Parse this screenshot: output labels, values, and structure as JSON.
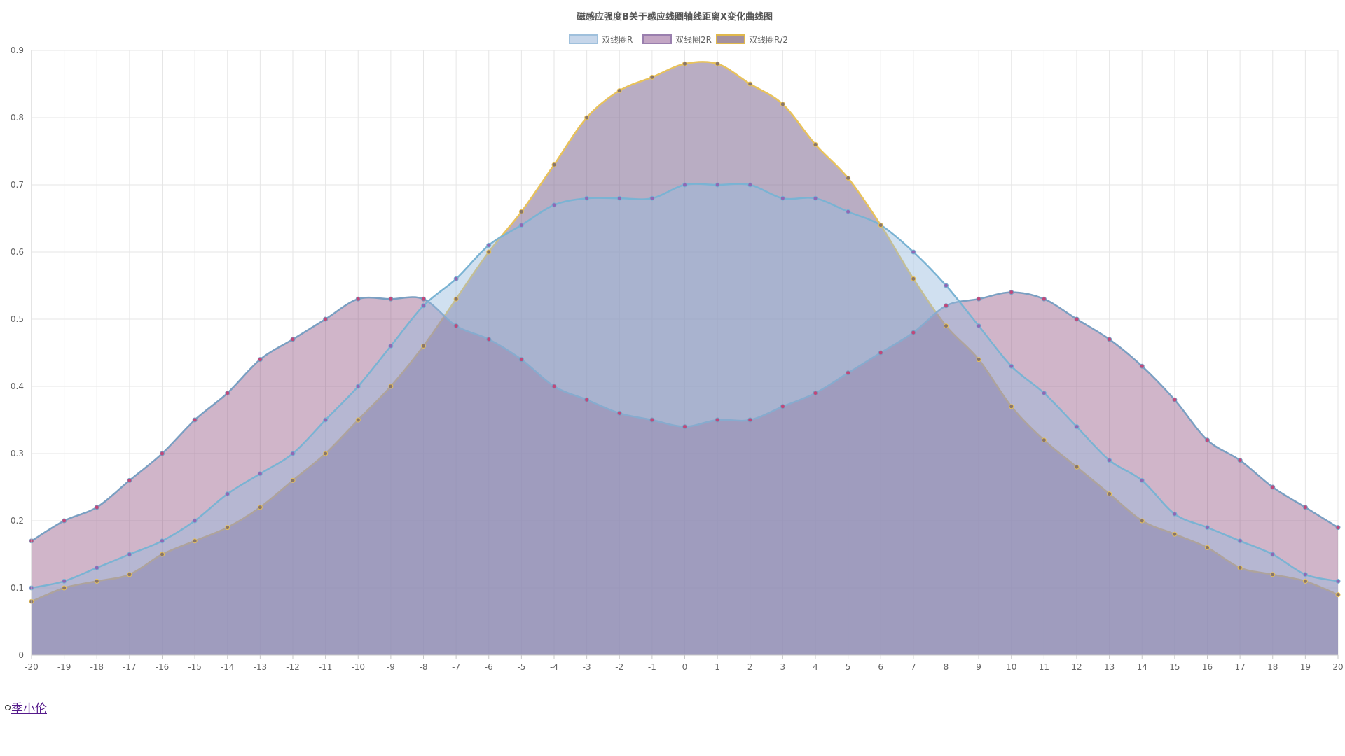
{
  "chart_data": {
    "type": "area",
    "title": "磁感应强度B关于感应线圈轴线距离X变化曲线图",
    "xlabel": "",
    "ylabel": "",
    "ylim": [
      0,
      0.9
    ],
    "y_ticks": [
      "0",
      "0.1",
      "0.2",
      "0.3",
      "0.4",
      "0.5",
      "0.6",
      "0.7",
      "0.8",
      "0.9"
    ],
    "grid": true,
    "legend_position": "top-center",
    "categories": [
      "-20",
      "-19",
      "-18",
      "-17",
      "-16",
      "-15",
      "-14",
      "-13",
      "-12",
      "-11",
      "-10",
      "-9",
      "-8",
      "-7",
      "-6",
      "-5",
      "-4",
      "-3",
      "-2",
      "-1",
      "0",
      "1",
      "2",
      "3",
      "4",
      "5",
      "6",
      "7",
      "8",
      "9",
      "10",
      "11",
      "12",
      "13",
      "14",
      "15",
      "16",
      "17",
      "18",
      "19",
      "20"
    ],
    "series": [
      {
        "name": "双线圈R",
        "line_color": "#7ab3d3",
        "fill_color": "rgba(151,187,221,0.45)",
        "point_color": "#8f68b5",
        "values": [
          0.1,
          0.11,
          0.13,
          0.15,
          0.17,
          0.2,
          0.24,
          0.27,
          0.3,
          0.35,
          0.4,
          0.46,
          0.52,
          0.56,
          0.61,
          0.64,
          0.67,
          0.68,
          0.68,
          0.68,
          0.7,
          0.7,
          0.7,
          0.68,
          0.68,
          0.66,
          0.64,
          0.6,
          0.55,
          0.49,
          0.43,
          0.39,
          0.34,
          0.29,
          0.26,
          0.21,
          0.19,
          0.17,
          0.15,
          0.12,
          0.11
        ]
      },
      {
        "name": "双线圈2R",
        "line_color": "#7a9fc2",
        "fill_color": "rgba(138,70,120,0.40)",
        "point_color": "#c0487a",
        "values": [
          0.17,
          0.2,
          0.22,
          0.26,
          0.3,
          0.35,
          0.39,
          0.44,
          0.47,
          0.5,
          0.53,
          0.53,
          0.53,
          0.49,
          0.47,
          0.44,
          0.4,
          0.38,
          0.36,
          0.35,
          0.34,
          0.35,
          0.35,
          0.37,
          0.39,
          0.42,
          0.45,
          0.48,
          0.52,
          0.53,
          0.54,
          0.53,
          0.5,
          0.47,
          0.43,
          0.38,
          0.32,
          0.29,
          0.25,
          0.22,
          0.19
        ]
      },
      {
        "name": "双线圈R/2",
        "line_color": "#e8c25a",
        "fill_color": "rgba(128,105,145,0.55)",
        "point_color": "#8a7668",
        "values": [
          0.08,
          0.1,
          0.11,
          0.12,
          0.15,
          0.17,
          0.19,
          0.22,
          0.26,
          0.3,
          0.35,
          0.4,
          0.46,
          0.53,
          0.6,
          0.66,
          0.73,
          0.8,
          0.84,
          0.86,
          0.88,
          0.88,
          0.85,
          0.82,
          0.76,
          0.71,
          0.64,
          0.56,
          0.49,
          0.44,
          0.37,
          0.32,
          0.28,
          0.24,
          0.2,
          0.18,
          0.16,
          0.13,
          0.12,
          0.11,
          0.09
        ]
      }
    ]
  },
  "legend": [
    {
      "label": "双线圈R",
      "fill": "#c6d6ea",
      "stroke": "#9fc0dc"
    },
    {
      "label": "双线圈2R",
      "fill": "#c3a6c4",
      "stroke": "#9a7fae"
    },
    {
      "label": "双线圈R/2",
      "fill": "#a4919f",
      "stroke": "#e0b84c"
    }
  ],
  "footer": {
    "link_text": "季小伦"
  }
}
